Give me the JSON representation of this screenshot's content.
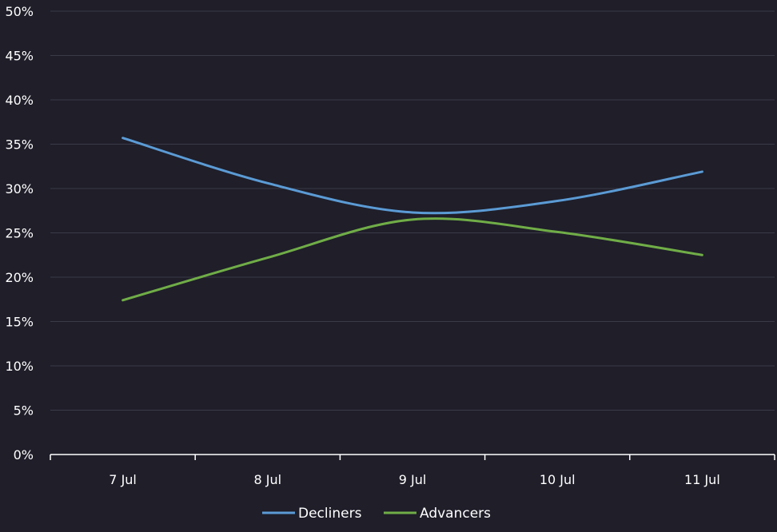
{
  "chart_data": {
    "type": "line",
    "categories": [
      "7 Jul",
      "8 Jul",
      "9 Jul",
      "10 Jul",
      "11 Jul"
    ],
    "series": [
      {
        "name": "Decliners",
        "values": [
          35.7,
          30.6,
          27.3,
          28.6,
          31.9
        ],
        "color": "#5b9bd5"
      },
      {
        "name": "Advancers",
        "values": [
          17.4,
          22.2,
          26.5,
          25.1,
          22.5
        ],
        "color": "#70ad47"
      }
    ],
    "y_ticks": [
      "0%",
      "5%",
      "10%",
      "15%",
      "20%",
      "25%",
      "30%",
      "35%",
      "40%",
      "45%",
      "50%"
    ],
    "ylim": [
      0,
      50
    ],
    "y_unit": "%",
    "grid": true,
    "smooth": true,
    "legend_position": "bottom-center",
    "colors": {
      "background": "#1f1e29",
      "grid": "#3a3947",
      "axis": "#ffffff",
      "text": "#ffffff"
    }
  }
}
